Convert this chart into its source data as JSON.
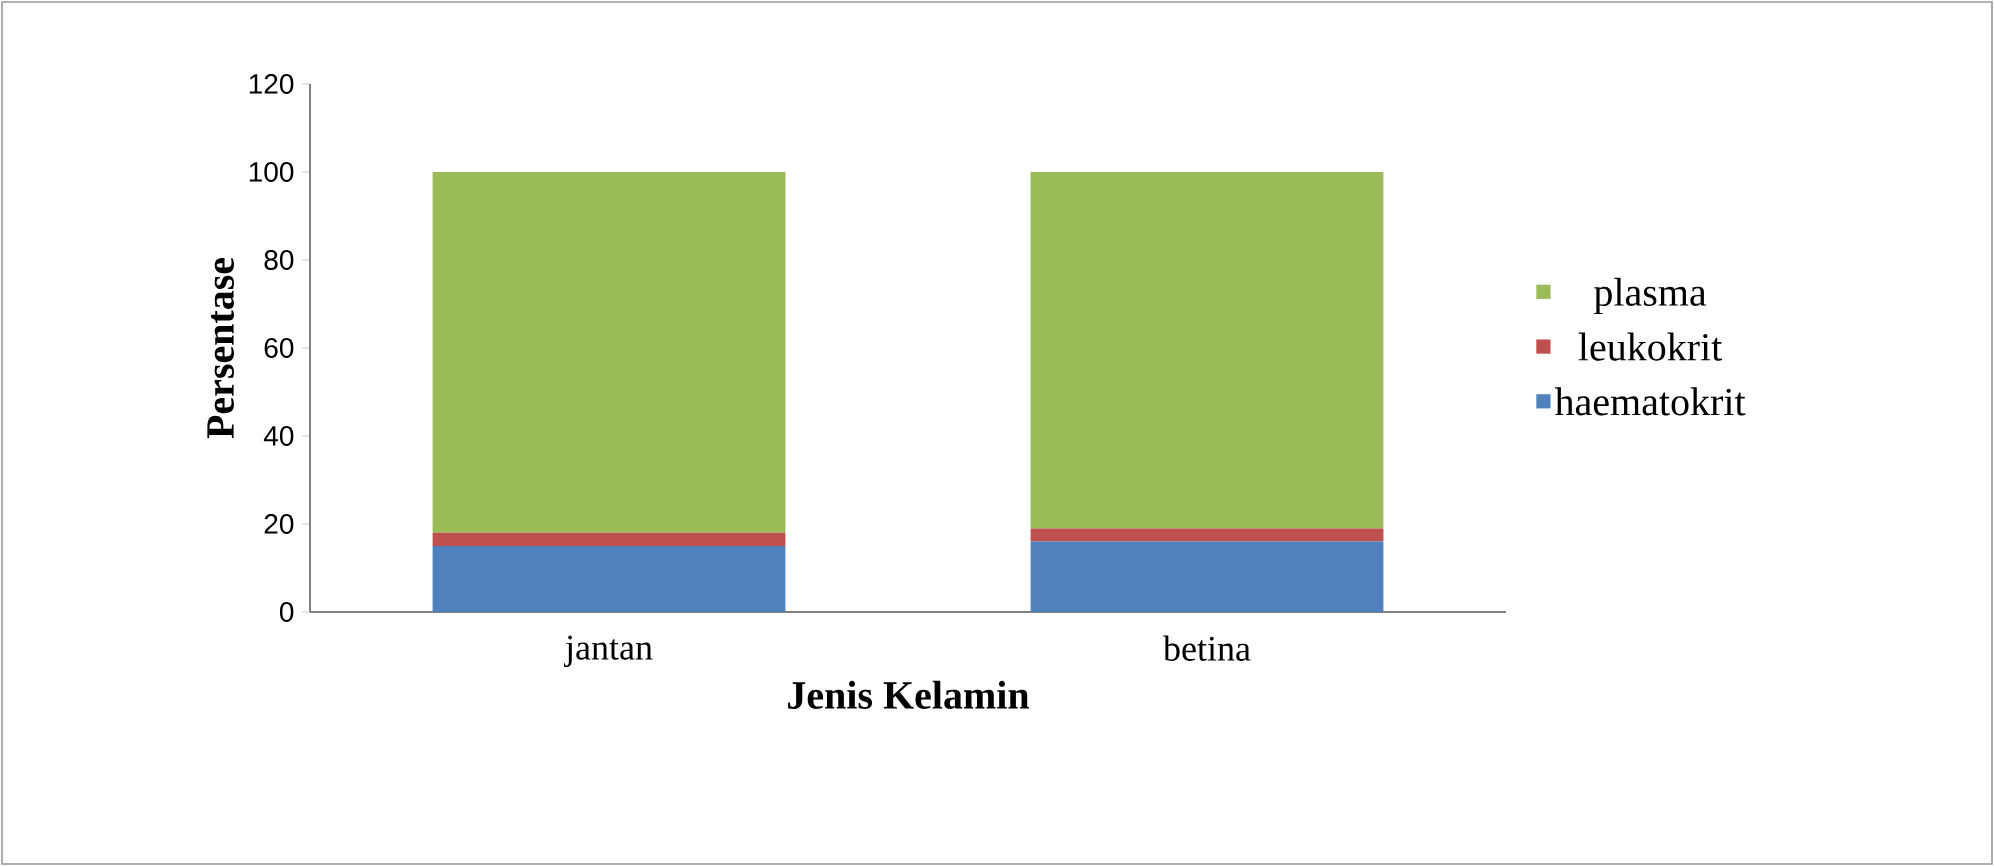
{
  "chart_data": {
    "type": "bar",
    "stacked": true,
    "xlabel": "Jenis Kelamin",
    "ylabel": "Persentase",
    "categories": [
      "jantan",
      "betina"
    ],
    "series": [
      {
        "name": "haematokrit",
        "color": "#4f81bd",
        "values": [
          15,
          16
        ]
      },
      {
        "name": "leukokrit",
        "color": "#c0504d",
        "values": [
          3,
          3
        ]
      },
      {
        "name": "plasma",
        "color": "#9bbb59",
        "values": [
          82,
          81
        ]
      }
    ],
    "ylim": [
      0,
      120
    ],
    "yticks": [
      0,
      20,
      40,
      60,
      80,
      100,
      120
    ],
    "legend": "right",
    "grid": false
  }
}
